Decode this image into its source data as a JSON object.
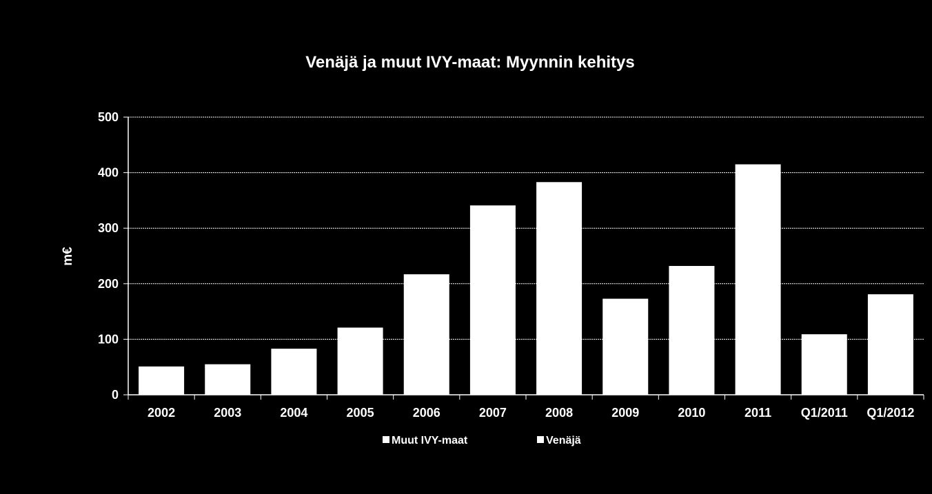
{
  "chart_data": {
    "type": "bar",
    "title": "Venäjä ja muut IVY-maat: Myynnin kehitys",
    "xlabel": "",
    "ylabel": "m€",
    "ylim": [
      0,
      500
    ],
    "yticks": [
      0,
      100,
      200,
      300,
      400,
      500
    ],
    "grid": true,
    "legend_position": "bottom",
    "stacked": true,
    "categories": [
      "2002",
      "2003",
      "2004",
      "2005",
      "2006",
      "2007",
      "2008",
      "2009",
      "2010",
      "2011",
      "Q1/2011",
      "Q1/2012"
    ],
    "series": [
      {
        "name": "Muut IVY-maat",
        "color": "#ffffff",
        "values": [
          0,
          0,
          0,
          0,
          0,
          0,
          0,
          0,
          0,
          0,
          0,
          0
        ]
      },
      {
        "name": "Venäjä",
        "color": "#ffffff",
        "values": [
          51,
          55,
          83,
          121,
          217,
          341,
          383,
          173,
          232,
          415,
          109,
          181
        ]
      }
    ]
  },
  "colors": {
    "background": "#000000",
    "foreground": "#ffffff",
    "gridline": "#ffffff"
  }
}
